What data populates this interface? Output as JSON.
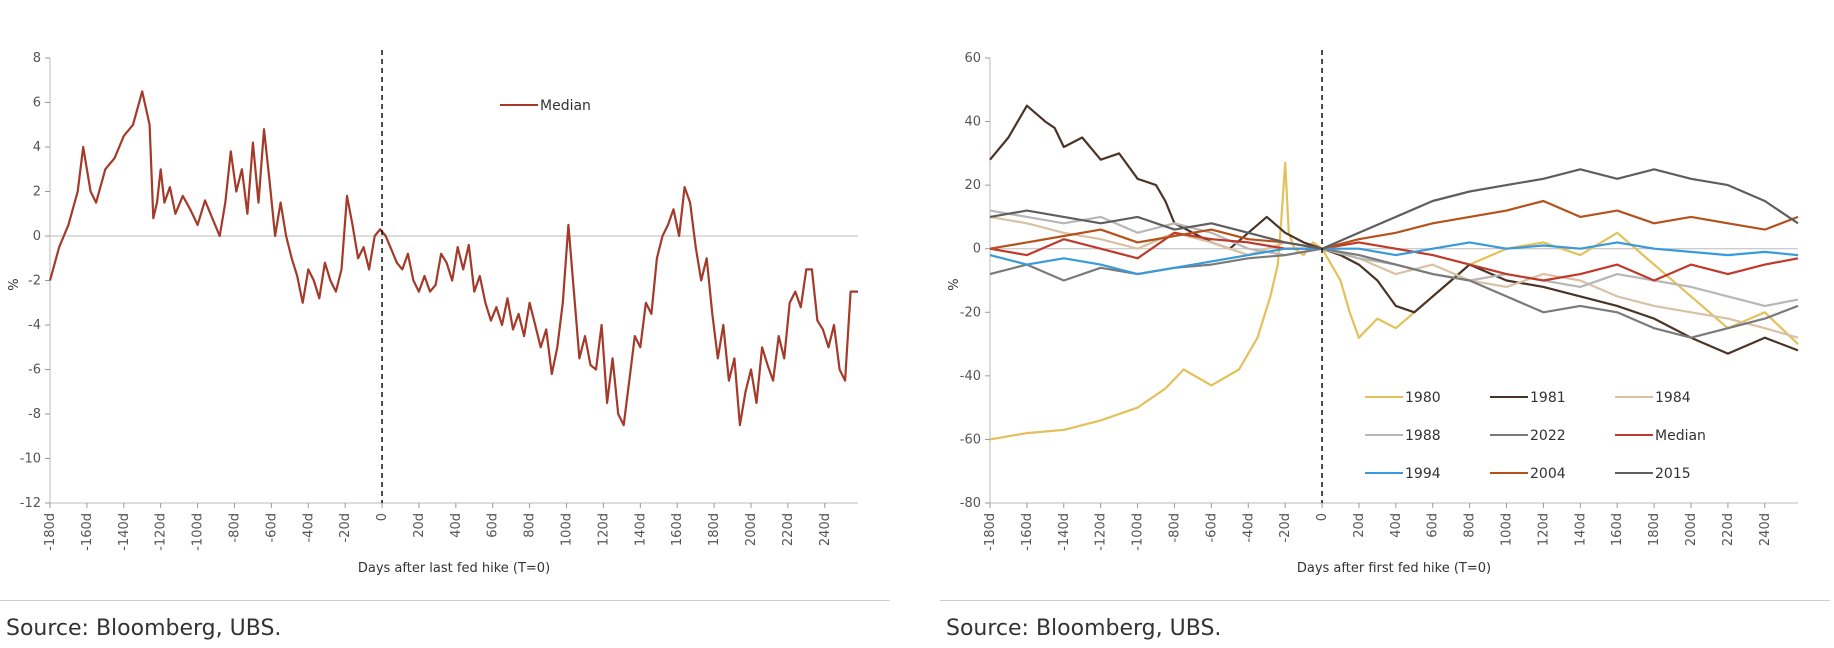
{
  "charts": [
    {
      "source": "Source: Bloomberg, UBS.",
      "chart_data": {
        "type": "line",
        "xlabel": "Days after last fed hike (T=0)",
        "ylabel": "%",
        "xlim": [
          -180,
          258
        ],
        "ylim": [
          -12,
          8
        ],
        "yticks": [
          8,
          6,
          4,
          2,
          0,
          -2,
          -4,
          -6,
          -8,
          -10,
          -12
        ],
        "ytick_labels": [
          "8",
          "6",
          "4",
          "2",
          "0",
          "-2",
          "-4",
          "-6",
          "-8",
          "-10",
          "-12"
        ],
        "xticks": [
          -180,
          -160,
          -140,
          -120,
          -100,
          -80,
          -60,
          -40,
          -20,
          0,
          20,
          40,
          60,
          80,
          100,
          120,
          140,
          160,
          180,
          200,
          220,
          240
        ],
        "xtick_labels": [
          "-180d",
          "-160d",
          "-140d",
          "-120d",
          "-100d",
          "-80d",
          "-60d",
          "-40d",
          "-20d",
          "0",
          "20d",
          "40d",
          "60d",
          "80d",
          "100d",
          "120d",
          "140d",
          "160d",
          "180d",
          "200d",
          "220d",
          "240d"
        ],
        "vline": 0,
        "hline": 0,
        "legend_position": "top-center",
        "series": [
          {
            "name": "Median",
            "color": "#a33a2a",
            "x": [
              -180,
              -175,
              -170,
              -165,
              -162,
              -158,
              -155,
              -150,
              -145,
              -140,
              -135,
              -130,
              -126,
              -124,
              -122,
              -120,
              -118,
              -115,
              -112,
              -108,
              -104,
              -100,
              -96,
              -92,
              -88,
              -85,
              -82,
              -79,
              -76,
              -73,
              -70,
              -67,
              -64,
              -61,
              -58,
              -55,
              -52,
              -49,
              -46,
              -43,
              -40,
              -37,
              -34,
              -31,
              -28,
              -25,
              -22,
              -19,
              -16,
              -13,
              -10,
              -7,
              -4,
              -1,
              2,
              5,
              8,
              11,
              14,
              17,
              20,
              23,
              26,
              29,
              32,
              35,
              38,
              41,
              44,
              47,
              50,
              53,
              56,
              59,
              62,
              65,
              68,
              71,
              74,
              77,
              80,
              83,
              86,
              89,
              92,
              95,
              98,
              101,
              104,
              107,
              110,
              113,
              116,
              119,
              122,
              125,
              128,
              131,
              134,
              137,
              140,
              143,
              146,
              149,
              152,
              155,
              158,
              161,
              164,
              167,
              170,
              173,
              176,
              179,
              182,
              185,
              188,
              191,
              194,
              197,
              200,
              203,
              206,
              209,
              212,
              215,
              218,
              221,
              224,
              227,
              230,
              233,
              236,
              239,
              242,
              245,
              248,
              251,
              254,
              258
            ],
            "values": [
              -2.0,
              -0.5,
              0.5,
              2.0,
              4.0,
              2.0,
              1.5,
              3.0,
              3.5,
              4.5,
              5.0,
              6.5,
              5.0,
              0.8,
              1.5,
              3.0,
              1.5,
              2.2,
              1.0,
              1.8,
              1.2,
              0.5,
              1.6,
              0.8,
              0.0,
              1.5,
              3.8,
              2.0,
              3.0,
              1.0,
              4.2,
              1.5,
              4.8,
              2.5,
              0.0,
              1.5,
              0.0,
              -1.0,
              -1.8,
              -3.0,
              -1.5,
              -2.0,
              -2.8,
              -1.2,
              -2.0,
              -2.5,
              -1.5,
              1.8,
              0.5,
              -1.0,
              -0.5,
              -1.5,
              0.0,
              0.3,
              0.0,
              -0.6,
              -1.2,
              -1.5,
              -0.8,
              -2.0,
              -2.5,
              -1.8,
              -2.5,
              -2.2,
              -0.8,
              -1.2,
              -2.0,
              -0.5,
              -1.5,
              -0.4,
              -2.5,
              -1.8,
              -3.0,
              -3.8,
              -3.2,
              -4.0,
              -2.8,
              -4.2,
              -3.5,
              -4.5,
              -3.0,
              -4.0,
              -5.0,
              -4.2,
              -6.2,
              -5.0,
              -3.0,
              0.5,
              -2.5,
              -5.5,
              -4.5,
              -5.8,
              -6.0,
              -4.0,
              -7.5,
              -5.5,
              -8.0,
              -8.5,
              -6.5,
              -4.5,
              -5.0,
              -3.0,
              -3.5,
              -1.0,
              0.0,
              0.5,
              1.2,
              0.0,
              2.2,
              1.5,
              -0.5,
              -2.0,
              -1.0,
              -3.5,
              -5.5,
              -4.0,
              -6.5,
              -5.5,
              -8.5,
              -7.0,
              -6.0,
              -7.5,
              -5.0,
              -5.8,
              -6.5,
              -4.5,
              -5.5,
              -3.0,
              -2.5,
              -3.2,
              -1.5,
              -1.5,
              -3.8,
              -4.2,
              -5.0,
              -4.0,
              -6.0,
              -6.5,
              -2.5,
              -2.5
            ]
          }
        ]
      }
    },
    {
      "source": "Source: Bloomberg, UBS.",
      "chart_data": {
        "type": "line",
        "xlabel": "Days after first fed hike (T=0)",
        "ylabel": "%",
        "xlim": [
          -180,
          258
        ],
        "ylim": [
          -80,
          60
        ],
        "yticks": [
          60,
          40,
          20,
          0,
          -20,
          -40,
          -60,
          -80
        ],
        "ytick_labels": [
          "60",
          "40",
          "20",
          "0",
          "-20",
          "-40",
          "-60",
          "-80"
        ],
        "xticks": [
          -180,
          -160,
          -140,
          -120,
          -100,
          -80,
          -60,
          -40,
          -20,
          0,
          20,
          40,
          60,
          80,
          100,
          120,
          140,
          160,
          180,
          200,
          220,
          240
        ],
        "xtick_labels": [
          "-180d",
          "-160d",
          "-140d",
          "-120d",
          "-100d",
          "-80d",
          "-60d",
          "-40d",
          "-20d",
          "0",
          "20d",
          "40d",
          "60d",
          "80d",
          "100d",
          "120d",
          "140d",
          "160d",
          "180d",
          "200d",
          "220d",
          "240d"
        ],
        "vline": 0,
        "hline": 0,
        "legend_position": "bottom-right",
        "series": [
          {
            "name": "1980",
            "color": "#e3c15a",
            "x": [
              -180,
              -160,
              -140,
              -120,
              -100,
              -85,
              -75,
              -60,
              -45,
              -35,
              -28,
              -24,
              -22,
              -20,
              -18,
              -15,
              -10,
              -5,
              0,
              5,
              10,
              15,
              20,
              30,
              40,
              50,
              60,
              70,
              80,
              100,
              120,
              140,
              160,
              180,
              200,
              220,
              240,
              258
            ],
            "values": [
              -60,
              -58,
              -57,
              -54,
              -50,
              -44,
              -38,
              -43,
              -38,
              -28,
              -15,
              -5,
              10,
              27,
              5,
              0,
              -2,
              2,
              0,
              -5,
              -10,
              -20,
              -28,
              -22,
              -25,
              -20,
              -15,
              -10,
              -5,
              0,
              2,
              -2,
              5,
              -5,
              -15,
              -25,
              -20,
              -30
            ]
          },
          {
            "name": "1981",
            "color": "#4a3428",
            "x": [
              -180,
              -170,
              -160,
              -150,
              -145,
              -140,
              -130,
              -120,
              -110,
              -100,
              -90,
              -85,
              -80,
              -70,
              -60,
              -50,
              -40,
              -30,
              -20,
              -10,
              0,
              10,
              20,
              30,
              40,
              50,
              60,
              70,
              80,
              100,
              120,
              140,
              160,
              180,
              200,
              220,
              240,
              258
            ],
            "values": [
              28,
              35,
              45,
              40,
              38,
              32,
              35,
              28,
              30,
              22,
              20,
              15,
              8,
              5,
              2,
              0,
              5,
              10,
              5,
              2,
              0,
              -2,
              -5,
              -10,
              -18,
              -20,
              -15,
              -10,
              -5,
              -10,
              -12,
              -15,
              -18,
              -22,
              -28,
              -33,
              -28,
              -32
            ]
          },
          {
            "name": "1984",
            "color": "#d9c2a4",
            "x": [
              -180,
              -160,
              -140,
              -120,
              -100,
              -80,
              -60,
              -40,
              -20,
              0,
              20,
              40,
              60,
              80,
              100,
              120,
              140,
              160,
              180,
              200,
              220,
              240,
              258
            ],
            "values": [
              10,
              8,
              5,
              3,
              0,
              5,
              2,
              -2,
              2,
              0,
              -3,
              -8,
              -5,
              -10,
              -12,
              -8,
              -10,
              -15,
              -18,
              -20,
              -22,
              -25,
              -28
            ]
          },
          {
            "name": "1988",
            "color": "#b7b7b7",
            "x": [
              -180,
              -160,
              -140,
              -120,
              -100,
              -80,
              -60,
              -40,
              -20,
              0,
              20,
              40,
              60,
              80,
              100,
              120,
              140,
              160,
              180,
              200,
              220,
              240,
              258
            ],
            "values": [
              12,
              10,
              8,
              10,
              5,
              8,
              5,
              0,
              -2,
              0,
              -3,
              -5,
              -8,
              -10,
              -8,
              -10,
              -12,
              -8,
              -10,
              -12,
              -15,
              -18,
              -16
            ]
          },
          {
            "name": "2022",
            "color": "#7a7a7a",
            "x": [
              -180,
              -160,
              -140,
              -120,
              -100,
              -80,
              -60,
              -40,
              -20,
              0,
              20,
              40,
              60,
              80,
              100,
              120,
              140,
              160,
              180,
              200,
              220,
              240,
              258
            ],
            "values": [
              -8,
              -5,
              -10,
              -6,
              -8,
              -6,
              -5,
              -3,
              -2,
              0,
              -2,
              -5,
              -8,
              -10,
              -15,
              -20,
              -18,
              -20,
              -25,
              -28,
              -25,
              -22,
              -18
            ]
          },
          {
            "name": "Median",
            "color": "#c0392b",
            "x": [
              -180,
              -160,
              -140,
              -120,
              -100,
              -80,
              -60,
              -40,
              -20,
              0,
              20,
              40,
              60,
              80,
              100,
              120,
              140,
              160,
              180,
              200,
              220,
              240,
              258
            ],
            "values": [
              0,
              -2,
              3,
              0,
              -3,
              5,
              3,
              2,
              0,
              0,
              2,
              0,
              -2,
              -5,
              -8,
              -10,
              -8,
              -5,
              -10,
              -5,
              -8,
              -5,
              -3
            ]
          },
          {
            "name": "1994",
            "color": "#3a9ad9",
            "x": [
              -180,
              -160,
              -140,
              -120,
              -100,
              -80,
              -60,
              -40,
              -20,
              0,
              20,
              40,
              60,
              80,
              100,
              120,
              140,
              160,
              180,
              200,
              220,
              240,
              258
            ],
            "values": [
              -2,
              -5,
              -3,
              -5,
              -8,
              -6,
              -4,
              -2,
              0,
              0,
              0,
              -2,
              0,
              2,
              0,
              1,
              0,
              2,
              0,
              -1,
              -2,
              -1,
              -2
            ]
          },
          {
            "name": "2004",
            "color": "#b5521b",
            "x": [
              -180,
              -160,
              -140,
              -120,
              -100,
              -80,
              -60,
              -40,
              -20,
              0,
              20,
              40,
              60,
              80,
              100,
              120,
              140,
              160,
              180,
              200,
              220,
              240,
              258
            ],
            "values": [
              0,
              2,
              4,
              6,
              2,
              4,
              6,
              3,
              2,
              0,
              3,
              5,
              8,
              10,
              12,
              15,
              10,
              12,
              8,
              10,
              8,
              6,
              10
            ]
          },
          {
            "name": "2015",
            "color": "#5e5e5e",
            "x": [
              -180,
              -160,
              -140,
              -120,
              -100,
              -80,
              -60,
              -40,
              -20,
              0,
              20,
              40,
              60,
              80,
              100,
              120,
              140,
              160,
              180,
              200,
              220,
              240,
              258
            ],
            "values": [
              10,
              12,
              10,
              8,
              10,
              6,
              8,
              5,
              2,
              0,
              5,
              10,
              15,
              18,
              20,
              22,
              25,
              22,
              25,
              22,
              20,
              15,
              8
            ]
          }
        ]
      }
    }
  ]
}
